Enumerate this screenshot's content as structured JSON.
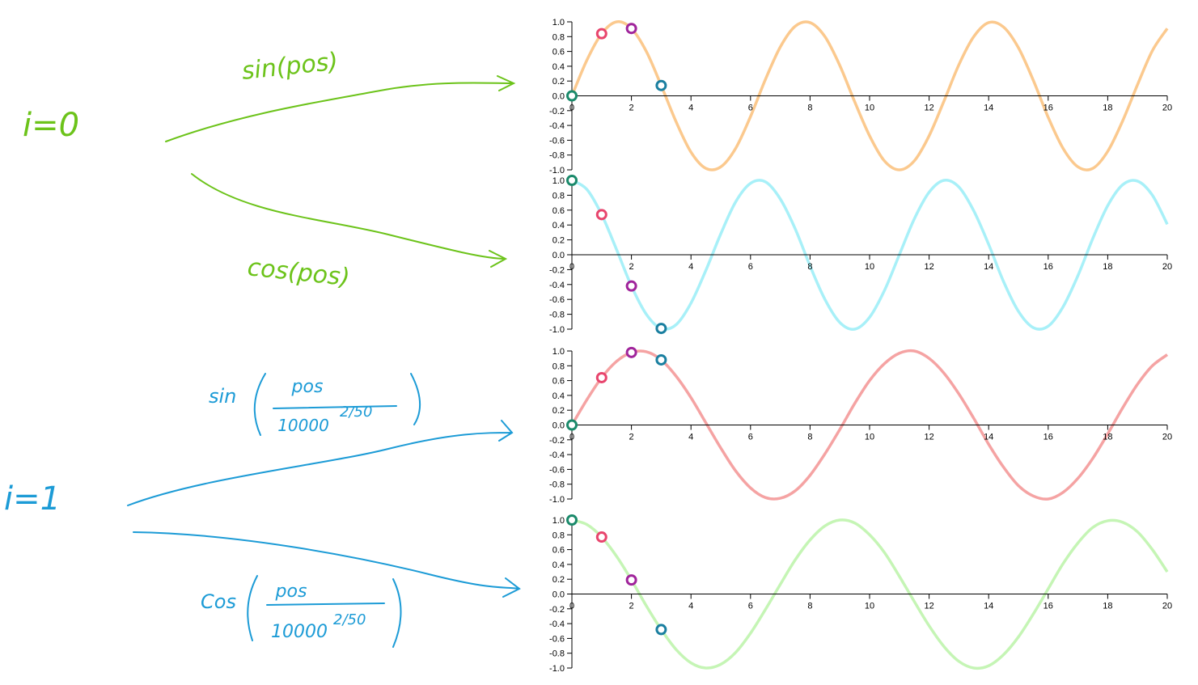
{
  "annotations": {
    "i0": {
      "label": "i=0",
      "sin": "sin(pos)",
      "cos": "cos(pos)"
    },
    "i1": {
      "label": "i=1",
      "sin": {
        "fn": "sin",
        "numerator": "pos",
        "denominator": "10000",
        "exponent": "2/50"
      },
      "cos": {
        "fn": "Cos",
        "numerator": "pos",
        "denominator": "10000",
        "exponent": "2/50"
      }
    }
  },
  "chart_data": [
    {
      "type": "line",
      "color": "#fbc98e",
      "x": [
        0,
        0.5,
        1,
        1.5,
        2,
        2.5,
        3,
        3.5,
        4,
        4.5,
        5,
        5.5,
        6,
        6.5,
        7,
        7.5,
        8,
        8.5,
        9,
        9.5,
        10,
        10.5,
        11,
        11.5,
        12,
        12.5,
        13,
        13.5,
        14,
        14.5,
        15,
        15.5,
        16,
        16.5,
        17,
        17.5,
        18,
        18.5,
        19,
        19.5,
        20
      ],
      "values": [
        0,
        0.48,
        0.84,
        1.0,
        0.91,
        0.6,
        0.14,
        -0.35,
        -0.76,
        -0.98,
        -0.96,
        -0.71,
        -0.28,
        0.22,
        0.66,
        0.94,
        0.99,
        0.8,
        0.41,
        -0.08,
        -0.54,
        -0.88,
        -1.0,
        -0.88,
        -0.54,
        -0.07,
        0.42,
        0.8,
        0.99,
        0.93,
        0.65,
        0.21,
        -0.29,
        -0.71,
        -0.96,
        -0.98,
        -0.75,
        -0.34,
        0.15,
        0.61,
        0.91
      ],
      "points": {
        "x": [
          0,
          1,
          2,
          3
        ],
        "values": [
          0,
          0.84,
          0.91,
          0.14
        ],
        "colors": [
          "#1b8a6b",
          "#e8456d",
          "#a0249b",
          "#1a7fa0"
        ]
      },
      "xlim": [
        0,
        20
      ],
      "xticks": [
        0,
        2,
        4,
        6,
        8,
        10,
        12,
        14,
        16,
        18,
        20
      ],
      "ylim": [
        -1,
        1
      ],
      "yticks": [
        {
          "value": -1,
          "label": "-1.0"
        },
        {
          "value": -0.8,
          "label": "-0.8"
        },
        {
          "value": -0.6,
          "label": "-0.6"
        },
        {
          "value": -0.4,
          "label": "-0.4"
        },
        {
          "value": -0.2,
          "label": "-0.2"
        },
        {
          "value": 0,
          "label": "0.0"
        },
        {
          "value": 0.2,
          "label": "0.2"
        },
        {
          "value": 0.4,
          "label": "0.4"
        },
        {
          "value": 0.6,
          "label": "0.6"
        },
        {
          "value": 0.8,
          "label": "0.8"
        },
        {
          "value": 1,
          "label": "1.0"
        }
      ]
    },
    {
      "type": "line",
      "color": "#a8f0f8",
      "x": [
        0,
        0.5,
        1,
        1.5,
        2,
        2.5,
        3,
        3.5,
        4,
        4.5,
        5,
        5.5,
        6,
        6.5,
        7,
        7.5,
        8,
        8.5,
        9,
        9.5,
        10,
        10.5,
        11,
        11.5,
        12,
        12.5,
        13,
        13.5,
        14,
        14.5,
        15,
        15.5,
        16,
        16.5,
        17,
        17.5,
        18,
        18.5,
        19,
        19.5,
        20
      ],
      "values": [
        1,
        0.88,
        0.54,
        0.07,
        -0.42,
        -0.8,
        -0.99,
        -0.94,
        -0.65,
        -0.21,
        0.28,
        0.71,
        0.96,
        0.98,
        0.75,
        0.35,
        -0.15,
        -0.6,
        -0.91,
        -1.0,
        -0.84,
        -0.48,
        0.0,
        0.48,
        0.84,
        1.0,
        0.91,
        0.59,
        0.14,
        -0.36,
        -0.76,
        -0.98,
        -0.96,
        -0.7,
        -0.28,
        0.22,
        0.66,
        0.94,
        0.99,
        0.8,
        0.41
      ],
      "points": {
        "x": [
          0,
          1,
          2,
          3
        ],
        "values": [
          1,
          0.54,
          -0.42,
          -0.99
        ],
        "colors": [
          "#1b8a6b",
          "#e8456d",
          "#a0249b",
          "#1a7fa0"
        ]
      },
      "xlim": [
        0,
        20
      ],
      "xticks": [
        0,
        2,
        4,
        6,
        8,
        10,
        12,
        14,
        16,
        18,
        20
      ],
      "ylim": [
        -1,
        1
      ],
      "yticks": [
        {
          "value": -1,
          "label": "-1.0"
        },
        {
          "value": -0.8,
          "label": "-0.8"
        },
        {
          "value": -0.6,
          "label": "-0.6"
        },
        {
          "value": -0.4,
          "label": "-0.4"
        },
        {
          "value": -0.2,
          "label": "-0.2"
        },
        {
          "value": 0,
          "label": "0.0"
        },
        {
          "value": 0.2,
          "label": "0.2"
        },
        {
          "value": 0.4,
          "label": "0.4"
        },
        {
          "value": 0.6,
          "label": "0.6"
        },
        {
          "value": 0.8,
          "label": "0.8"
        },
        {
          "value": 1,
          "label": "1.0"
        }
      ]
    },
    {
      "type": "line",
      "color": "#f5a3a3",
      "x": [
        0,
        0.5,
        1,
        1.5,
        2,
        2.5,
        3,
        3.5,
        4,
        4.5,
        5,
        5.5,
        6,
        6.5,
        7,
        7.5,
        8,
        8.5,
        9,
        9.5,
        10,
        10.5,
        11,
        11.5,
        12,
        12.5,
        13,
        13.5,
        14,
        14.5,
        15,
        15.5,
        16,
        16.5,
        17,
        17.5,
        18,
        18.5,
        19,
        19.5,
        20
      ],
      "values": [
        0,
        0.34,
        0.64,
        0.86,
        0.98,
        0.99,
        0.88,
        0.66,
        0.37,
        0.03,
        -0.31,
        -0.62,
        -0.85,
        -0.98,
        -0.99,
        -0.89,
        -0.68,
        -0.39,
        -0.06,
        0.29,
        0.6,
        0.83,
        0.97,
        1.0,
        0.9,
        0.7,
        0.42,
        0.09,
        -0.26,
        -0.57,
        -0.82,
        -0.96,
        -1.0,
        -0.91,
        -0.72,
        -0.45,
        -0.12,
        0.23,
        0.55,
        0.8,
        0.95
      ],
      "points": {
        "x": [
          0,
          1,
          2,
          3
        ],
        "values": [
          0,
          0.64,
          0.98,
          0.88
        ],
        "colors": [
          "#1b8a6b",
          "#e8456d",
          "#a0249b",
          "#1a7fa0"
        ]
      },
      "xlim": [
        0,
        20
      ],
      "xticks": [
        0,
        2,
        4,
        6,
        8,
        10,
        12,
        14,
        16,
        18,
        20
      ],
      "ylim": [
        -1,
        1
      ],
      "yticks": [
        {
          "value": -1,
          "label": "-1.0"
        },
        {
          "value": -0.8,
          "label": "-0.8"
        },
        {
          "value": -0.6,
          "label": "-0.6"
        },
        {
          "value": -0.4,
          "label": "-0.4"
        },
        {
          "value": -0.2,
          "label": "-0.2"
        },
        {
          "value": 0,
          "label": "0.0"
        },
        {
          "value": 0.2,
          "label": "0.2"
        },
        {
          "value": 0.4,
          "label": "0.4"
        },
        {
          "value": 0.6,
          "label": "0.6"
        },
        {
          "value": 0.8,
          "label": "0.8"
        },
        {
          "value": 1,
          "label": "1.0"
        }
      ]
    },
    {
      "type": "line",
      "color": "#c5f5b5",
      "x": [
        0,
        0.5,
        1,
        1.5,
        2,
        2.5,
        3,
        3.5,
        4,
        4.5,
        5,
        5.5,
        6,
        6.5,
        7,
        7.5,
        8,
        8.5,
        9,
        9.5,
        10,
        10.5,
        11,
        11.5,
        12,
        12.5,
        13,
        13.5,
        14,
        14.5,
        15,
        15.5,
        16,
        16.5,
        17,
        17.5,
        18,
        18.5,
        19,
        19.5,
        20
      ],
      "values": [
        1,
        0.94,
        0.77,
        0.51,
        0.19,
        -0.16,
        -0.48,
        -0.75,
        -0.93,
        -1.0,
        -0.95,
        -0.79,
        -0.53,
        -0.21,
        0.13,
        0.46,
        0.73,
        0.92,
        1.0,
        0.96,
        0.8,
        0.56,
        0.24,
        -0.1,
        -0.43,
        -0.71,
        -0.91,
        -1.0,
        -0.97,
        -0.82,
        -0.58,
        -0.27,
        0.07,
        0.41,
        0.69,
        0.9,
        0.99,
        0.97,
        0.84,
        0.6,
        0.3
      ],
      "points": {
        "x": [
          0,
          1,
          2,
          3
        ],
        "values": [
          1,
          0.77,
          0.19,
          -0.48
        ],
        "colors": [
          "#1b8a6b",
          "#e8456d",
          "#a0249b",
          "#1a7fa0"
        ]
      },
      "xlim": [
        0,
        20
      ],
      "xticks": [
        0,
        2,
        4,
        6,
        8,
        10,
        12,
        14,
        16,
        18,
        20
      ],
      "ylim": [
        -1,
        1
      ],
      "yticks": [
        {
          "value": -1,
          "label": "-1.0"
        },
        {
          "value": -0.8,
          "label": "-0.8"
        },
        {
          "value": -0.6,
          "label": "-0.6"
        },
        {
          "value": -0.4,
          "label": "-0.4"
        },
        {
          "value": -0.2,
          "label": "-0.2"
        },
        {
          "value": 0,
          "label": "0.0"
        },
        {
          "value": 0.2,
          "label": "0.2"
        },
        {
          "value": 0.4,
          "label": "0.4"
        },
        {
          "value": 0.6,
          "label": "0.6"
        },
        {
          "value": 0.8,
          "label": "0.8"
        },
        {
          "value": 1,
          "label": "1.0"
        }
      ]
    }
  ]
}
